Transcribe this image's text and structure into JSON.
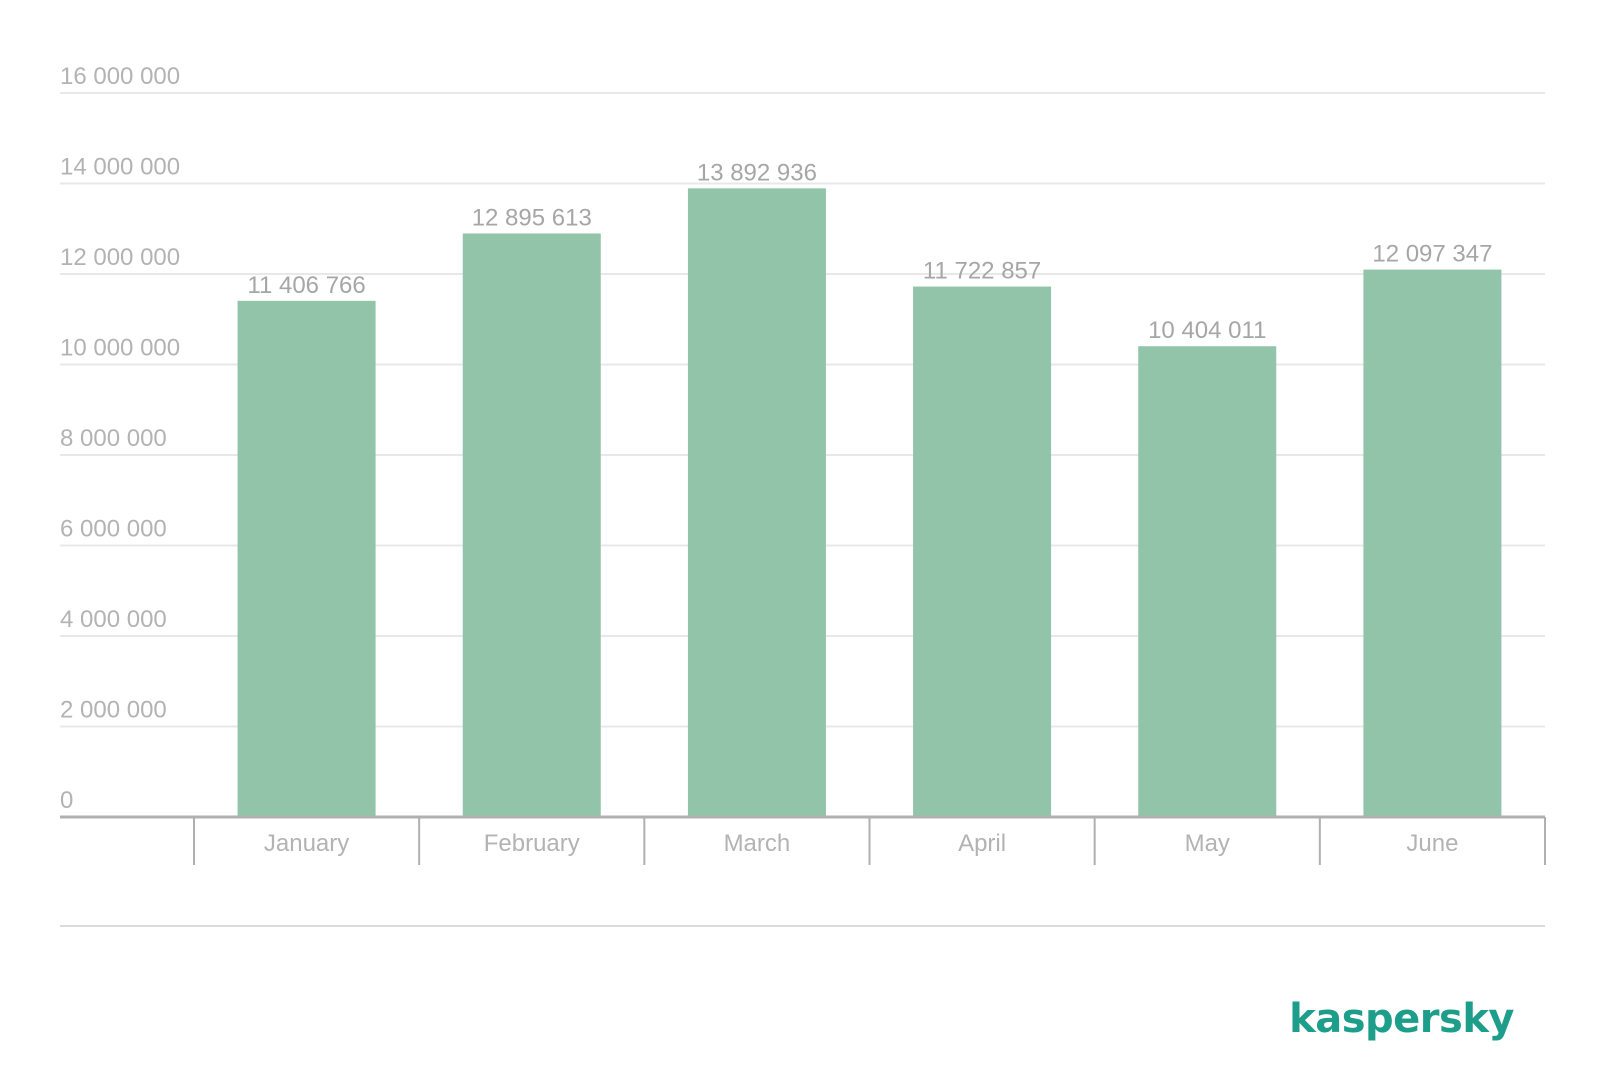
{
  "chart_data": {
    "type": "bar",
    "categories": [
      "January",
      "February",
      "March",
      "April",
      "May",
      "June"
    ],
    "values": [
      11406766,
      12895613,
      13892936,
      11722857,
      10404011,
      12097347
    ],
    "value_labels": [
      "11 406 766",
      "12 895 613",
      "13 892 936",
      "11 722 857",
      "10 404 011",
      "12 097 347"
    ],
    "y_ticks": [
      0,
      2000000,
      4000000,
      6000000,
      8000000,
      10000000,
      12000000,
      14000000,
      16000000
    ],
    "y_tick_labels": [
      "0",
      "2 000 000",
      "4 000 000",
      "6 000 000",
      "8 000 000",
      "10 000 000",
      "12 000 000",
      "14 000 000",
      "16 000 000"
    ],
    "ylim": [
      0,
      16000000
    ],
    "title": "",
    "xlabel": "",
    "ylabel": "",
    "grid": true,
    "legend": "none"
  },
  "colors": {
    "bar": "#91c4a8",
    "grid": "#e8e8e8",
    "axis": "#b0b0b0",
    "logo": "#1d9e8a"
  },
  "logo": {
    "text": "kaspersky"
  }
}
